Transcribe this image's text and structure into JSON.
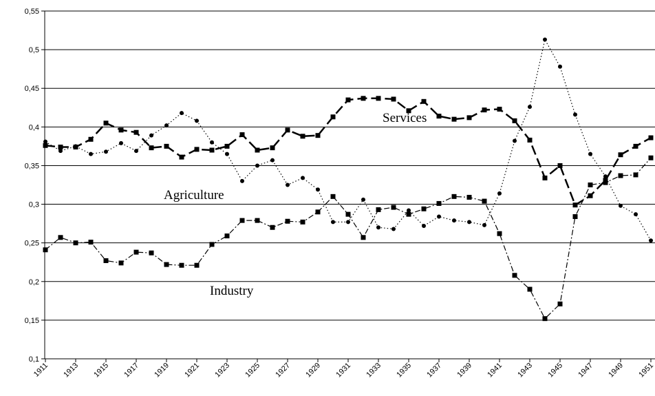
{
  "chart_data": {
    "type": "line",
    "categories": [
      "1911",
      null,
      "1913",
      null,
      "1915",
      null,
      "1917",
      null,
      "1919",
      null,
      "1921",
      null,
      "1923",
      null,
      "1925",
      null,
      "1927",
      null,
      "1929",
      null,
      "1931",
      null,
      "1933",
      null,
      "1935",
      null,
      "1937",
      null,
      "1939",
      null,
      "1941",
      null,
      "1943",
      null,
      "1945",
      null,
      "1947",
      null,
      "1949",
      null,
      "1951"
    ],
    "ylim": [
      0.1,
      0.55
    ],
    "yticks": [
      {
        "value": 0.1,
        "label": "0,1"
      },
      {
        "value": 0.15,
        "label": "0,15"
      },
      {
        "value": 0.2,
        "label": "0,2"
      },
      {
        "value": 0.25,
        "label": "0,25"
      },
      {
        "value": 0.3,
        "label": "0,3"
      },
      {
        "value": 0.35,
        "label": "0,35"
      },
      {
        "value": 0.4,
        "label": "0,4"
      },
      {
        "value": 0.45,
        "label": "0,45"
      },
      {
        "value": 0.5,
        "label": "0,5"
      },
      {
        "value": 0.55,
        "label": "0,55"
      }
    ],
    "grid": true,
    "series": [
      {
        "name": "Services",
        "color": "#000000",
        "values": [
          0.376,
          0.374,
          0.374,
          0.384,
          0.405,
          0.396,
          0.393,
          0.373,
          0.375,
          0.361,
          0.371,
          0.37,
          0.375,
          0.39,
          0.37,
          0.373,
          0.396,
          0.388,
          0.389,
          0.413,
          0.435,
          0.437,
          0.437,
          0.436,
          0.421,
          0.433,
          0.414,
          0.41,
          0.412,
          0.422,
          0.423,
          0.408,
          0.383,
          0.334,
          0.35,
          0.299,
          0.311,
          0.331,
          0.364,
          0.375,
          0.386
        ]
      },
      {
        "name": "Agriculture",
        "color": "#000000",
        "values": [
          0.381,
          0.369,
          0.375,
          0.365,
          0.368,
          0.379,
          0.369,
          0.389,
          0.402,
          0.418,
          0.408,
          0.38,
          0.365,
          0.33,
          0.35,
          0.357,
          0.325,
          0.334,
          0.319,
          0.277,
          0.277,
          0.306,
          0.27,
          0.268,
          0.292,
          0.272,
          0.284,
          0.279,
          0.277,
          0.273,
          0.314,
          0.382,
          0.426,
          0.513,
          0.478,
          0.416,
          0.365,
          0.336,
          0.298,
          0.287,
          0.253
        ]
      },
      {
        "name": "Industry",
        "color": "#000000",
        "values": [
          0.241,
          0.257,
          0.25,
          0.251,
          0.227,
          0.224,
          0.238,
          0.237,
          0.222,
          0.221,
          0.221,
          0.248,
          0.259,
          0.279,
          0.279,
          0.27,
          0.278,
          0.277,
          0.29,
          0.31,
          0.287,
          0.257,
          0.293,
          0.296,
          0.287,
          0.294,
          0.301,
          0.31,
          0.309,
          0.304,
          0.262,
          0.208,
          0.19,
          0.152,
          0.171,
          0.284,
          0.325,
          0.328,
          0.337,
          0.338,
          0.36
        ]
      }
    ]
  }
}
